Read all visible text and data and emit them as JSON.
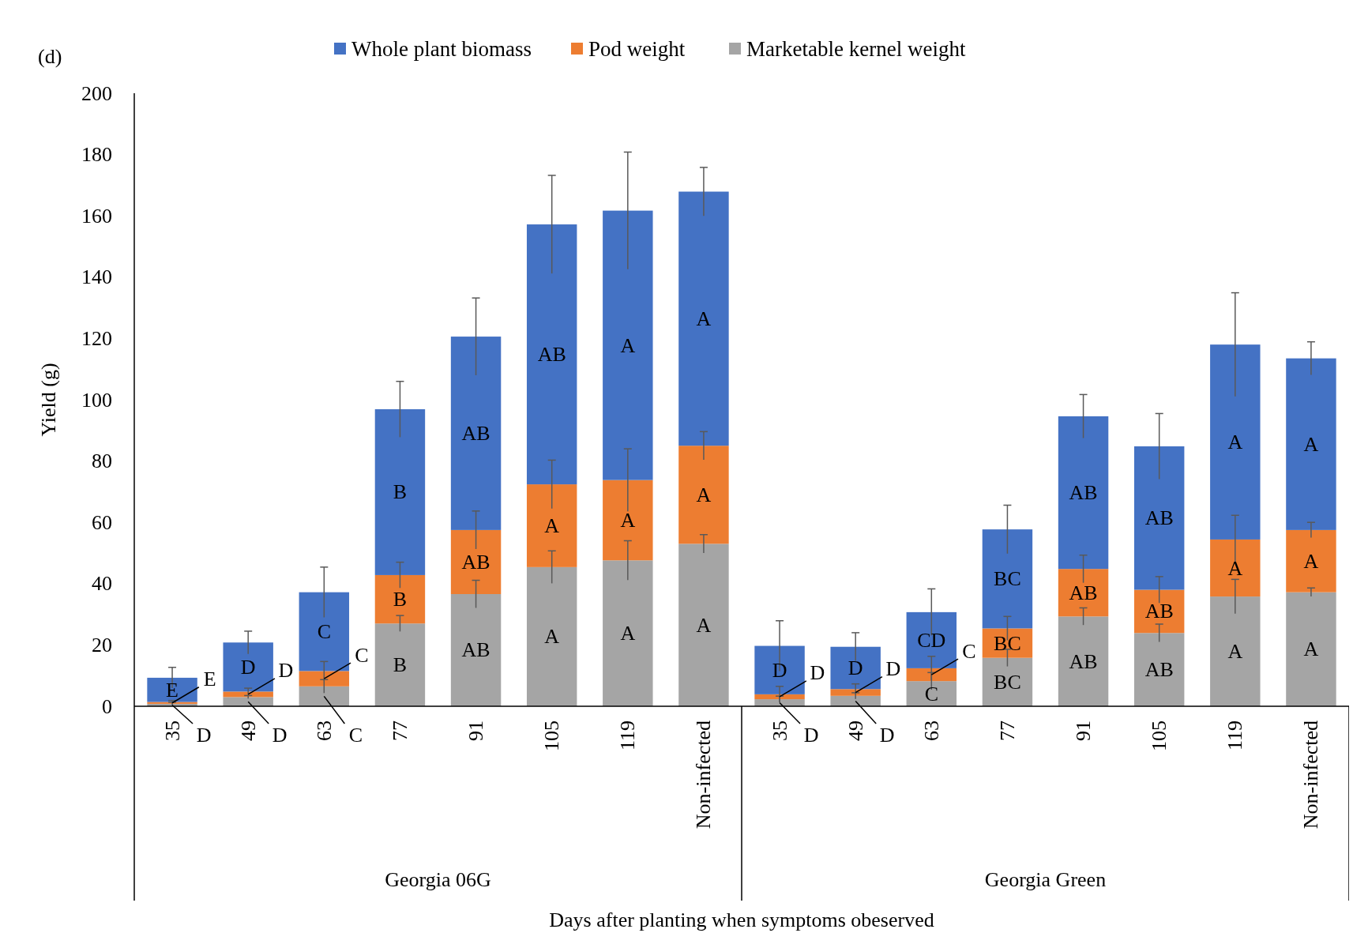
{
  "chart_data": {
    "type": "bar",
    "stacked": true,
    "title": "(d)",
    "xlabel": "Days after planting when symptoms obeserved",
    "ylabel": "Yield (g)",
    "categories": [
      "35",
      "49",
      "63",
      "77",
      "91",
      "105",
      "119",
      "Non-infected",
      "35",
      "49",
      "63",
      "77",
      "91",
      "105",
      "119",
      "Non-infected"
    ],
    "annotations": [
      "Georgia 06G",
      "Georgia Green"
    ],
    "ylim": [
      0,
      200
    ],
    "yticks": [
      0,
      20,
      40,
      60,
      80,
      100,
      120,
      140,
      160,
      180,
      200
    ],
    "grid": false,
    "legend": "top",
    "series": [
      {
        "name": "Marketable kernel weight",
        "color": "#a5a5a5",
        "values": [
          0.8,
          3,
          6.5,
          27,
          36.6,
          45.4,
          47.6,
          53,
          2.3,
          3.4,
          8.2,
          15.8,
          29.3,
          23.9,
          35.8,
          37.2
        ],
        "errors": [
          0.5,
          0.5,
          2.2,
          2.6,
          4.5,
          5.3,
          6.4,
          3,
          1,
          1,
          2.8,
          2.8,
          2.8,
          2.9,
          5.6,
          1.4
        ],
        "value_labels": [
          "D",
          "D",
          "C",
          "B",
          "AB",
          "A",
          "A",
          "A",
          "D",
          "D",
          "C",
          "BC",
          "AB",
          "AB",
          "A",
          "A"
        ]
      },
      {
        "name": "Pod weight",
        "color": "#ed7d31",
        "values": [
          0.6,
          1.8,
          5,
          15.8,
          20.9,
          27,
          26.2,
          32,
          1.6,
          2.2,
          4.2,
          9.6,
          15.5,
          14.1,
          18.6,
          20.3
        ],
        "errors": [
          0.5,
          1.1,
          3.1,
          4.2,
          6.2,
          7.9,
          10.2,
          4.6,
          2.6,
          1.7,
          3.9,
          3.9,
          4.5,
          4.3,
          7.9,
          2.5
        ],
        "value_labels": [
          "E",
          "D",
          "C",
          "B",
          "AB",
          "A",
          "A",
          "A",
          "D",
          "D",
          "C",
          "BC",
          "AB",
          "AB",
          "A",
          "A"
        ]
      },
      {
        "name": "Whole plant biomass",
        "color": "#4472c4",
        "values": [
          7.9,
          16,
          25.7,
          54.1,
          63.1,
          84.8,
          87.9,
          82.9,
          15.8,
          13.8,
          18.3,
          32.3,
          49.8,
          46.8,
          63.6,
          56
        ],
        "errors": [
          3.4,
          3.7,
          8.2,
          9.1,
          12.6,
          16,
          19.1,
          7.9,
          8.2,
          4.6,
          7.6,
          7.9,
          7.1,
          10.7,
          16.9,
          5.4
        ],
        "value_labels": [
          "E",
          "D",
          "C",
          "B",
          "AB",
          "AB",
          "A",
          "A",
          "D",
          "D",
          "CD",
          "BC",
          "AB",
          "AB",
          "A",
          "A"
        ]
      }
    ]
  }
}
